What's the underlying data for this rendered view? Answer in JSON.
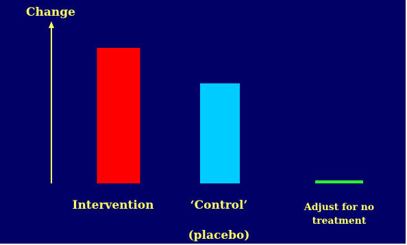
{
  "slide": {
    "background": "#000066",
    "text_color": "#ffff66"
  },
  "chart_data": {
    "type": "bar",
    "ylabel": "Change",
    "ylim": [
      0,
      1
    ],
    "categories": [
      "Intervention",
      "‘Control’ (placebo)",
      "Adjust for no treatment"
    ],
    "category_lines": [
      [
        "Intervention"
      ],
      [
        "‘Control’",
        "(placebo)"
      ],
      [
        "Adjust for no treatment"
      ]
    ],
    "values": [
      0.88,
      0.65,
      0.02
    ],
    "colors": [
      "#ff0000",
      "#00ccff",
      "#33ee33"
    ],
    "axis_color": "#ffff66",
    "grid": false,
    "legend": "none"
  }
}
